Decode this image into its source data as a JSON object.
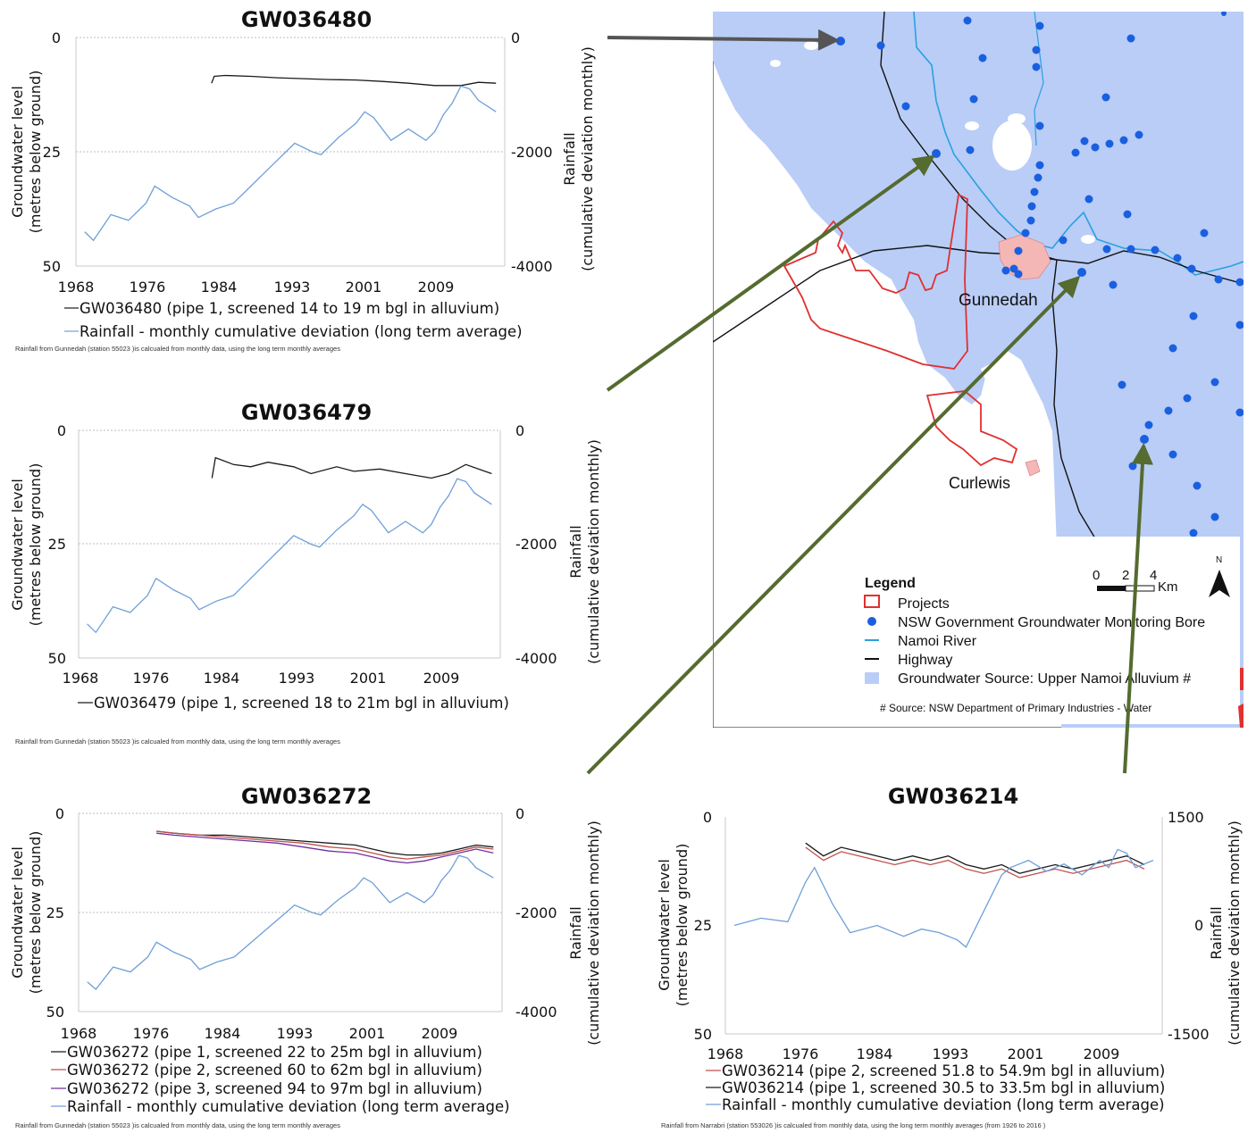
{
  "charts": [
    {
      "id": "c1",
      "title": "GW036480",
      "ylabel": [
        "Groundwater level",
        "(metres below ground)"
      ],
      "y2label": [
        "Rainfall",
        "(cumulative deviation monthly)"
      ],
      "xticks": [
        "1968",
        "1976",
        "1984",
        "1993",
        "2001",
        "2009"
      ],
      "yticks": [
        "0",
        "25",
        "50"
      ],
      "y2ticks": [
        "0",
        "-2000",
        "-4000"
      ],
      "legend": [
        {
          "text": "GW036480 (pipe 1, screened 14 to 19 m bgl in alluvium)",
          "color": "#1a1a1a"
        },
        {
          "text": "Rainfall - monthly cumulative deviation (long term average)",
          "color": "#6f9fd8"
        }
      ],
      "note": "Rainfall from Gunnedah (station 55023 )is calcualed from monthly data, using the long term monthly averages"
    },
    {
      "id": "c2",
      "title": "GW036479",
      "ylabel": [
        "Groundwater level",
        "(metres below ground)"
      ],
      "y2label": [
        "Rainfall",
        "(cumulative deviation monthly)"
      ],
      "xticks": [
        "1968",
        "1976",
        "1984",
        "1993",
        "2001",
        "2009"
      ],
      "yticks": [
        "0",
        "25",
        "50"
      ],
      "y2ticks": [
        "0",
        "-2000",
        "-4000"
      ],
      "legend": [
        {
          "text": "GW036479 (pipe 1, screened 18 to 21m bgl in alluvium)",
          "color": "#1a1a1a"
        }
      ],
      "note": "Rainfall from Gunnedah (station 55023 )is calcualed from monthly data, using the long term monthly averages"
    },
    {
      "id": "c3",
      "title": "GW036272",
      "ylabel": [
        "Groundwater level",
        "(metres below ground)"
      ],
      "y2label": [
        "Rainfall",
        "(cumulative deviation monthly)"
      ],
      "xticks": [
        "1968",
        "1976",
        "1984",
        "1993",
        "2001",
        "2009"
      ],
      "yticks": [
        "0",
        "25",
        "50"
      ],
      "y2ticks": [
        "0",
        "-2000",
        "-4000"
      ],
      "legend": [
        {
          "text": "GW036272 (pipe 1, screened 22 to 25m bgl in alluvium)",
          "color": "#1a1a1a"
        },
        {
          "text": "GW036272 (pipe 2, screened 60 to 62m bgl in alluvium)",
          "color": "#c0504d"
        },
        {
          "text": "GW036272 (pipe 3, screened 94 to 97m bgl in alluvium)",
          "color": "#7030a0"
        },
        {
          "text": "Rainfall - monthly cumulative deviation (long term average)",
          "color": "#6f9fd8"
        }
      ],
      "note": "Rainfall from Gunnedah (station 55023 )is calcualed from monthly data, using the long term monthly averages"
    },
    {
      "id": "c4",
      "title": "GW036214",
      "ylabel": [
        "Groundwater level",
        "(metres below ground)"
      ],
      "y2label": [
        "Rainfall",
        "(cumulative deviation monthly)"
      ],
      "xticks": [
        "1968",
        "1976",
        "1984",
        "1993",
        "2001",
        "2009"
      ],
      "yticks": [
        "0",
        "25",
        "50"
      ],
      "y2ticks": [
        "1500",
        "0",
        "-1500"
      ],
      "legend": [
        {
          "text": "GW036214 (pipe 2, screened 51.8 to 54.9m bgl in alluvium)",
          "color": "#c0504d"
        },
        {
          "text": "GW036214 (pipe 1, screened 30.5 to 33.5m bgl in alluvium)",
          "color": "#1a1a1a"
        },
        {
          "text": "Rainfall - monthly cumulative deviation (long term average)",
          "color": "#6f9fd8"
        }
      ],
      "note": "Rainfall from Narrabri (station 553026 )is calcualed from monthly data, using the long term monthly averages (from 1926 to 2016 )"
    }
  ],
  "chart_data": [
    {
      "type": "line",
      "title": "GW036480",
      "xlabel": "",
      "ylabel": "Groundwater level (metres below ground)",
      "y2label": "Rainfall (cumulative deviation monthly)",
      "xlim": [
        1968,
        2017
      ],
      "ylim": [
        0,
        50
      ],
      "y_inverted": true,
      "y2lim": [
        -4000,
        0
      ],
      "grid": true,
      "series": [
        {
          "name": "GW036480 (pipe 1, screened 14 to 19 m bgl in alluvium)",
          "axis": "left",
          "color": "#1a1a1a",
          "x": [
            1983.5,
            1983.8,
            1985,
            1988,
            1991,
            1994,
            1997,
            2000,
            2003,
            2006,
            2009,
            2012,
            2014,
            2016
          ],
          "y": [
            10,
            8.5,
            8.3,
            8.5,
            8.8,
            9,
            9.2,
            9.3,
            9.6,
            10,
            10.5,
            10.5,
            9.8,
            10
          ]
        },
        {
          "name": "Rainfall - monthly cumulative deviation (long term average)",
          "axis": "right",
          "color": "#6f9fd8",
          "x": [
            1969,
            1970,
            1972,
            1974,
            1976,
            1977,
            1979,
            1981,
            1982,
            1984,
            1986,
            1988,
            1990,
            1992,
            1993,
            1995,
            1996,
            1998,
            2000,
            2001,
            2002,
            2004,
            2006,
            2008,
            2009,
            2010,
            2011,
            2012,
            2013,
            2014,
            2016
          ],
          "y": [
            -3400,
            -3550,
            -3100,
            -3200,
            -2900,
            -2600,
            -2800,
            -2950,
            -3150,
            -3000,
            -2900,
            -2600,
            -2300,
            -2000,
            -1850,
            -2000,
            -2050,
            -1750,
            -1500,
            -1300,
            -1400,
            -1800,
            -1600,
            -1800,
            -1650,
            -1350,
            -1150,
            -850,
            -900,
            -1100,
            -1300
          ]
        }
      ]
    },
    {
      "type": "line",
      "title": "GW036479",
      "xlabel": "",
      "ylabel": "Groundwater level (metres below ground)",
      "y2label": "Rainfall (cumulative deviation monthly)",
      "xlim": [
        1968,
        2017
      ],
      "ylim": [
        0,
        50
      ],
      "y_inverted": true,
      "y2lim": [
        -4000,
        0
      ],
      "grid": true,
      "series": [
        {
          "name": "GW036479 (pipe 1, screened 18 to 21m bgl in alluvium)",
          "axis": "left",
          "color": "#1a1a1a",
          "x": [
            1983.5,
            1983.9,
            1986,
            1988,
            1990,
            1993,
            1995,
            1998,
            2000,
            2003,
            2006,
            2009,
            2011,
            2013,
            2016
          ],
          "y": [
            10.5,
            6,
            7.5,
            8,
            7,
            8,
            9.5,
            8,
            9,
            8.5,
            9.5,
            10.5,
            9.5,
            7.5,
            9.5
          ]
        },
        {
          "name": "Rainfall - monthly cumulative deviation (long term average)",
          "axis": "right",
          "color": "#6f9fd8",
          "x": [
            1969,
            1970,
            1972,
            1974,
            1976,
            1977,
            1979,
            1981,
            1982,
            1984,
            1986,
            1988,
            1990,
            1992,
            1993,
            1995,
            1996,
            1998,
            2000,
            2001,
            2002,
            2004,
            2006,
            2008,
            2009,
            2010,
            2011,
            2012,
            2013,
            2014,
            2016
          ],
          "y": [
            -3400,
            -3550,
            -3100,
            -3200,
            -2900,
            -2600,
            -2800,
            -2950,
            -3150,
            -3000,
            -2900,
            -2600,
            -2300,
            -2000,
            -1850,
            -2000,
            -2050,
            -1750,
            -1500,
            -1300,
            -1400,
            -1800,
            -1600,
            -1800,
            -1650,
            -1350,
            -1150,
            -850,
            -900,
            -1100,
            -1300
          ]
        }
      ]
    },
    {
      "type": "line",
      "title": "GW036272",
      "xlabel": "",
      "ylabel": "Groundwater level (metres below ground)",
      "y2label": "Rainfall (cumulative deviation monthly)",
      "xlim": [
        1968,
        2017
      ],
      "ylim": [
        0,
        50
      ],
      "y_inverted": true,
      "y2lim": [
        -4000,
        0
      ],
      "grid": true,
      "series": [
        {
          "name": "GW036272 (pipe 1, screened 22 to 25m bgl in alluvium)",
          "axis": "left",
          "color": "#1a1a1a",
          "x": [
            1977,
            1979,
            1982,
            1985,
            1988,
            1991,
            1994,
            1997,
            2000,
            2002,
            2004,
            2006,
            2008,
            2010,
            2012,
            2014,
            2016
          ],
          "y": [
            4.5,
            5,
            5.5,
            5.5,
            6,
            6.5,
            7,
            7.5,
            8,
            9,
            10,
            10.5,
            10.5,
            10,
            9,
            8,
            8.5
          ]
        },
        {
          "name": "GW036272 (pipe 2, screened 60 to 62m bgl in alluvium)",
          "axis": "left",
          "color": "#c0504d",
          "x": [
            1977,
            1979,
            1982,
            1985,
            1988,
            1991,
            1994,
            1997,
            2000,
            2002,
            2004,
            2006,
            2008,
            2010,
            2012,
            2014,
            2016
          ],
          "y": [
            4.5,
            5,
            5.5,
            6,
            6.5,
            7,
            7.5,
            8.5,
            9,
            10,
            11,
            11.5,
            11,
            10.5,
            9.5,
            8.5,
            9
          ]
        },
        {
          "name": "GW036272 (pipe 3, screened 94 to 97m bgl in alluvium)",
          "axis": "left",
          "color": "#7030a0",
          "x": [
            1977,
            1979,
            1982,
            1985,
            1988,
            1991,
            1994,
            1997,
            2000,
            2002,
            2004,
            2006,
            2008,
            2010,
            2012,
            2014,
            2016
          ],
          "y": [
            5,
            5.5,
            6,
            6.5,
            7,
            7.5,
            8.5,
            9.5,
            10,
            11,
            12,
            12.5,
            12,
            11,
            10,
            9,
            10
          ]
        },
        {
          "name": "Rainfall - monthly cumulative deviation (long term average)",
          "axis": "right",
          "color": "#6f9fd8",
          "x": [
            1969,
            1970,
            1972,
            1974,
            1976,
            1977,
            1979,
            1981,
            1982,
            1984,
            1986,
            1988,
            1990,
            1992,
            1993,
            1995,
            1996,
            1998,
            2000,
            2001,
            2002,
            2004,
            2006,
            2008,
            2009,
            2010,
            2011,
            2012,
            2013,
            2014,
            2016
          ],
          "y": [
            -3400,
            -3550,
            -3100,
            -3200,
            -2900,
            -2600,
            -2800,
            -2950,
            -3150,
            -3000,
            -2900,
            -2600,
            -2300,
            -2000,
            -1850,
            -2000,
            -2050,
            -1750,
            -1500,
            -1300,
            -1400,
            -1800,
            -1600,
            -1800,
            -1650,
            -1350,
            -1150,
            -850,
            -900,
            -1100,
            -1300
          ]
        }
      ]
    },
    {
      "type": "line",
      "title": "GW036214",
      "xlabel": "",
      "ylabel": "Groundwater level (metres below ground)",
      "y2label": "Rainfall (cumulative deviation monthly)",
      "xlim": [
        1968,
        2017
      ],
      "ylim": [
        0,
        50
      ],
      "y_inverted": true,
      "y2lim": [
        -1500,
        1500
      ],
      "grid": false,
      "series": [
        {
          "name": "GW036214 (pipe 2, screened 51.8 to 54.9m bgl in alluvium)",
          "axis": "left",
          "color": "#c0504d",
          "x": [
            1977,
            1979,
            1981,
            1983,
            1985,
            1987,
            1989,
            1991,
            1993,
            1995,
            1997,
            1999,
            2001,
            2003,
            2005,
            2007,
            2009,
            2011,
            2013,
            2015
          ],
          "y": [
            7,
            10,
            8,
            9,
            10,
            11,
            10,
            11,
            10,
            12,
            13,
            12,
            14,
            13,
            12,
            13,
            12,
            11,
            10,
            12
          ]
        },
        {
          "name": "GW036214 (pipe 1, screened 30.5 to 33.5m bgl in alluvium)",
          "axis": "left",
          "color": "#1a1a1a",
          "x": [
            1977,
            1979,
            1981,
            1983,
            1985,
            1987,
            1989,
            1991,
            1993,
            1995,
            1997,
            1999,
            2001,
            2003,
            2005,
            2007,
            2009,
            2011,
            2013,
            2015
          ],
          "y": [
            6,
            9,
            7,
            8,
            9,
            10,
            9,
            10,
            9,
            11,
            12,
            11,
            13,
            12,
            11,
            12,
            11,
            10,
            9,
            11
          ]
        },
        {
          "name": "Rainfall - monthly cumulative deviation (long term average)",
          "axis": "right",
          "color": "#6f9fd8",
          "x": [
            1969,
            1972,
            1975,
            1977,
            1978,
            1980,
            1982,
            1985,
            1988,
            1990,
            1992,
            1994,
            1995,
            1997,
            1999,
            2000,
            2002,
            2004,
            2006,
            2008,
            2010,
            2011,
            2012,
            2013,
            2014,
            2016
          ],
          "y": [
            0,
            100,
            50,
            600,
            800,
            300,
            -100,
            0,
            -150,
            -50,
            -100,
            -200,
            -300,
            200,
            700,
            800,
            900,
            750,
            850,
            700,
            900,
            800,
            1050,
            1000,
            800,
            900
          ]
        }
      ]
    }
  ],
  "map": {
    "towns": [
      "Gunnedah",
      "Curlewis"
    ],
    "legend_title": "Legend",
    "legend_items": [
      {
        "label": "Projects",
        "color": "#e03030"
      },
      {
        "label": "NSW Government Groundwater Monitoring Bore",
        "color": "#1a5fe0"
      },
      {
        "label": "Namoi River",
        "color": "#2aa0e0"
      },
      {
        "label": "Highway",
        "color": "#111111"
      },
      {
        "label": "Groundwater Source: Upper Namoi Alluvium #",
        "color": "#b9cdf7"
      }
    ],
    "scale_labels": [
      "0",
      "2",
      "4"
    ],
    "scale_unit": "Km",
    "north": "N",
    "source": "# Source: NSW Department of Primary Industries - Water"
  },
  "colors": {
    "arrow": "#556b2f",
    "arrow_top": "#555555"
  }
}
